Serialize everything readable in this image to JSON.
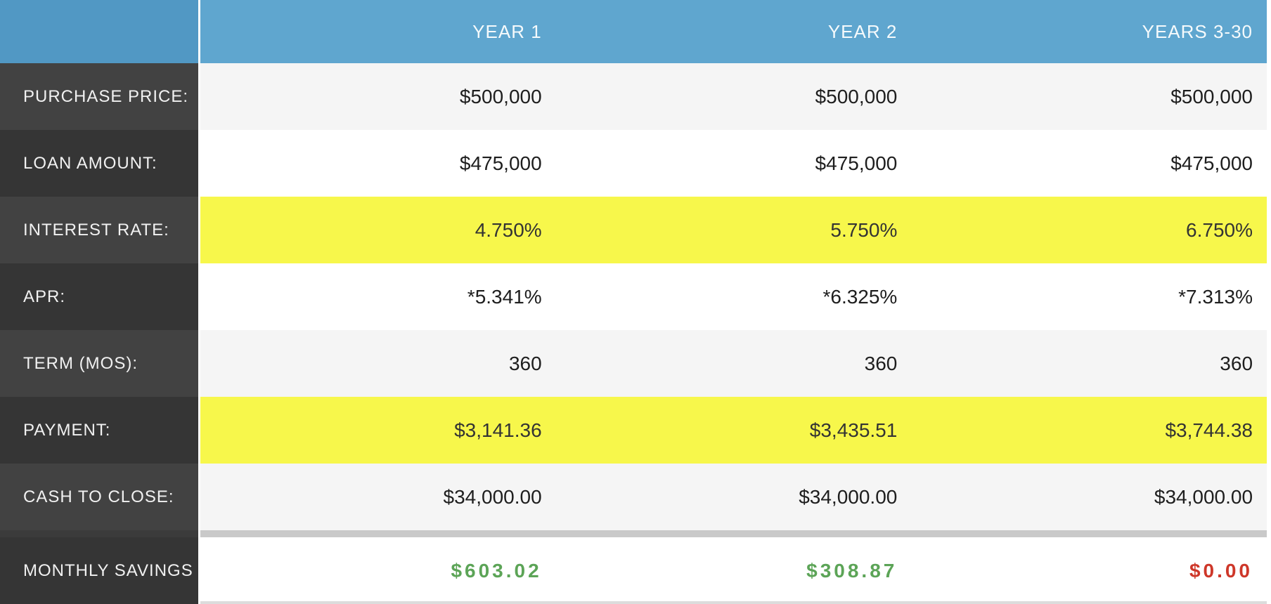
{
  "table": {
    "header": {
      "corner": "",
      "columns": [
        "YEAR 1",
        "YEAR 2",
        "YEARS 3-30"
      ]
    },
    "rows": [
      {
        "label": "PURCHASE PRICE:",
        "values": [
          "$500,000",
          "$500,000",
          "$500,000"
        ],
        "highlight": false
      },
      {
        "label": "LOAN AMOUNT:",
        "values": [
          "$475,000",
          "$475,000",
          "$475,000"
        ],
        "highlight": false
      },
      {
        "label": "INTEREST RATE:",
        "values": [
          "4.750%",
          "5.750%",
          "6.750%"
        ],
        "highlight": true
      },
      {
        "label": "APR:",
        "values": [
          "*5.341%",
          "*6.325%",
          "*7.313%"
        ],
        "highlight": false
      },
      {
        "label": "TERM (MOS):",
        "values": [
          "360",
          "360",
          "360"
        ],
        "highlight": false
      },
      {
        "label": "PAYMENT:",
        "values": [
          "$3,141.36",
          "$3,435.51",
          "$3,744.38"
        ],
        "highlight": true
      },
      {
        "label": "CASH TO CLOSE:",
        "values": [
          "$34,000.00",
          "$34,000.00",
          "$34,000.00"
        ],
        "highlight": false
      }
    ],
    "summary": {
      "label": "MONTHLY SAVINGS",
      "values": [
        "$603.02",
        "$308.87",
        "$0.00"
      ],
      "value_states": [
        "positive",
        "positive",
        "zero"
      ]
    }
  },
  "colors": {
    "header_blue_left": "#5198C4",
    "header_blue": "#5FA6CF",
    "label_dark": "#424242",
    "label_darker": "#353535",
    "row_stripe_gray": "#F5F5F5",
    "highlight_yellow": "#F7F74B",
    "divider_gray": "#C9C9C9",
    "savings_positive_green": "#5CA457",
    "savings_zero_red": "#CE3729"
  }
}
